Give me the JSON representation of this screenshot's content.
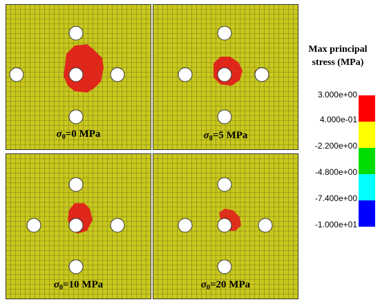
{
  "panels": [
    {
      "sigma_label": "=0 MPa"
    },
    {
      "sigma_label": "=5 MPa"
    },
    {
      "sigma_label": "=10 MPa"
    },
    {
      "sigma_label": "=20 MPa"
    }
  ],
  "sigma_symbol": "σ",
  "sigma_sub": "0",
  "legend": {
    "title_line1": "Max principal",
    "title_line2": "stress (MPa)",
    "ticks": [
      "3.000e+00",
      "4.000e-01",
      "-2.200e+00",
      "-4.800e+00",
      "-7.400e+00",
      "-1.000e+01"
    ],
    "colors": [
      "#ff0000",
      "#ffff00",
      "#00dd00",
      "#00ffff",
      "#0000ff"
    ]
  },
  "mesh_color": "#c8c81e",
  "damage_color": "#e0201a"
}
